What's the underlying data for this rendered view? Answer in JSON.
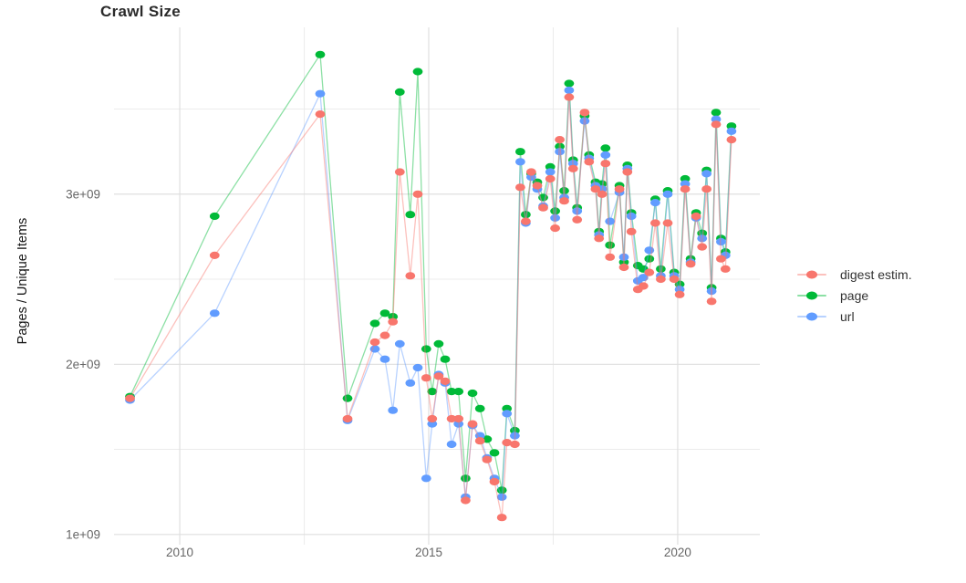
{
  "chart_data": {
    "type": "line",
    "title": "Crawl Size",
    "xlabel": "",
    "ylabel": "Pages / Unique Items",
    "values_unit": "billions (1e9) of pages / unique items",
    "x_unit": "year (decimal, monthly crawls)",
    "grid": true,
    "legend_position": "right",
    "x_domain": [
      2008.68,
      2021.65
    ],
    "y_domain": [
      0.94,
      3.98
    ],
    "x_ticks": {
      "values": [
        2010,
        2015,
        2020
      ],
      "labels": [
        "2010",
        "2015",
        "2020"
      ]
    },
    "x_minor_ticks": [
      2012.5,
      2017.5
    ],
    "y_ticks": {
      "values": [
        1,
        2,
        3
      ],
      "labels": [
        "1e+09",
        "2e+09",
        "3e+09"
      ]
    },
    "y_minor_ticks": [
      1.5,
      2.5,
      3.5
    ],
    "x": [
      2009.0,
      2010.7,
      2012.82,
      2013.37,
      2013.92,
      2014.12,
      2014.28,
      2014.42,
      2014.63,
      2014.78,
      2014.95,
      2015.07,
      2015.2,
      2015.33,
      2015.46,
      2015.6,
      2015.74,
      2015.88,
      2016.03,
      2016.17,
      2016.32,
      2016.47,
      2016.57,
      2016.73,
      2016.84,
      2016.95,
      2017.06,
      2017.18,
      2017.3,
      2017.44,
      2017.54,
      2017.63,
      2017.72,
      2017.82,
      2017.9,
      2017.98,
      2018.13,
      2018.22,
      2018.35,
      2018.42,
      2018.48,
      2018.55,
      2018.64,
      2018.83,
      2018.92,
      2018.99,
      2019.07,
      2019.2,
      2019.31,
      2019.43,
      2019.55,
      2019.66,
      2019.8,
      2019.93,
      2020.04,
      2020.15,
      2020.26,
      2020.37,
      2020.49,
      2020.58,
      2020.68,
      2020.77,
      2020.87,
      2020.96,
      2021.08
    ],
    "series": [
      {
        "name": "digest estim.",
        "color": "#f8766d",
        "values": [
          1.8,
          2.64,
          3.47,
          1.68,
          2.13,
          2.17,
          2.25,
          3.13,
          2.52,
          3.0,
          1.92,
          1.68,
          1.93,
          1.9,
          1.68,
          1.68,
          1.2,
          1.65,
          1.55,
          1.44,
          1.31,
          1.1,
          1.54,
          1.53,
          3.04,
          2.84,
          3.13,
          3.05,
          2.92,
          3.09,
          2.8,
          3.32,
          2.96,
          3.57,
          3.15,
          2.85,
          3.48,
          3.19,
          3.03,
          2.74,
          3.0,
          3.18,
          2.63,
          3.03,
          2.57,
          3.13,
          2.78,
          2.44,
          2.46,
          2.54,
          2.83,
          2.5,
          2.83,
          2.5,
          2.41,
          3.03,
          2.59,
          2.87,
          2.69,
          3.03,
          2.37,
          3.41,
          2.62,
          2.56,
          3.32
        ]
      },
      {
        "name": "page",
        "color": "#00ba38",
        "values": [
          1.81,
          2.87,
          3.82,
          1.8,
          2.24,
          2.3,
          2.28,
          3.6,
          2.88,
          3.72,
          2.09,
          1.84,
          2.12,
          2.03,
          1.84,
          1.84,
          1.33,
          1.83,
          1.74,
          1.56,
          1.48,
          1.26,
          1.74,
          1.61,
          3.25,
          2.88,
          3.12,
          3.07,
          2.98,
          3.16,
          2.9,
          3.28,
          3.02,
          3.65,
          3.2,
          2.92,
          3.46,
          3.23,
          3.07,
          2.78,
          3.06,
          3.27,
          2.7,
          3.05,
          2.6,
          3.17,
          2.89,
          2.58,
          2.56,
          2.62,
          2.97,
          2.56,
          3.02,
          2.54,
          2.47,
          3.09,
          2.62,
          2.89,
          2.77,
          3.14,
          2.45,
          3.48,
          2.74,
          2.66,
          3.4
        ]
      },
      {
        "name": "url",
        "color": "#619cff",
        "values": [
          1.79,
          2.3,
          3.59,
          1.67,
          2.09,
          2.03,
          1.73,
          2.12,
          1.89,
          1.98,
          1.33,
          1.65,
          1.94,
          1.89,
          1.53,
          1.65,
          1.22,
          1.64,
          1.58,
          1.45,
          1.33,
          1.22,
          1.71,
          1.58,
          3.19,
          2.83,
          3.1,
          3.03,
          2.93,
          3.13,
          2.86,
          3.25,
          2.98,
          3.61,
          3.18,
          2.9,
          3.43,
          3.21,
          3.05,
          2.76,
          3.03,
          3.23,
          2.84,
          3.01,
          2.63,
          3.15,
          2.87,
          2.49,
          2.51,
          2.67,
          2.95,
          2.52,
          3.0,
          2.52,
          2.44,
          3.06,
          2.6,
          2.86,
          2.74,
          3.12,
          2.43,
          3.44,
          2.72,
          2.64,
          3.37
        ]
      }
    ]
  },
  "style": {
    "grid_major_color": "#dfdfdf",
    "grid_minor_color": "#ececec",
    "tick_label_color": "#666666",
    "line_opacity": 0.45,
    "marker_rx": 5.4,
    "marker_ry": 4.1
  }
}
